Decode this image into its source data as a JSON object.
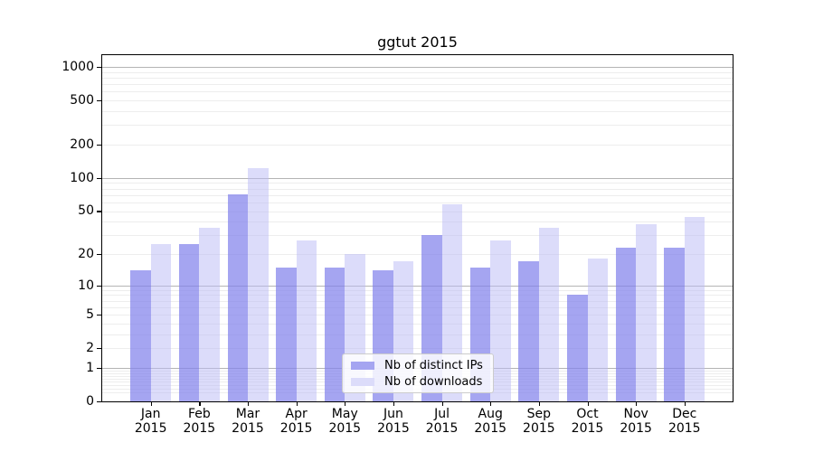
{
  "title": "ggtut 2015",
  "colors": {
    "ips_fill": "rgba(130,130,236,0.72)",
    "downloads_fill": "rgba(186,186,246,0.5)",
    "ips_solid": "#a5a5f1",
    "downloads_solid": "#dcdcfa",
    "major_grid": "#b4b4b4",
    "minor_grid": "#ededed",
    "axis": "#000000"
  },
  "legend": {
    "items": [
      {
        "label": "Nb of distinct IPs",
        "series": "ips"
      },
      {
        "label": "Nb of downloads",
        "series": "downloads"
      }
    ]
  },
  "x_axis": {
    "months": [
      "Jan",
      "Feb",
      "Mar",
      "Apr",
      "May",
      "Jun",
      "Jul",
      "Aug",
      "Sep",
      "Oct",
      "Nov",
      "Dec"
    ],
    "year": "2015"
  },
  "y_axis": {
    "tick_labels": [
      "1000",
      "500",
      "200",
      "100",
      "50",
      "20",
      "10",
      "5",
      "2",
      "1",
      "0"
    ]
  },
  "chart_data": {
    "type": "bar",
    "title": "ggtut 2015",
    "categories": [
      "Jan 2015",
      "Feb 2015",
      "Mar 2015",
      "Apr 2015",
      "May 2015",
      "Jun 2015",
      "Jul 2015",
      "Aug 2015",
      "Sep 2015",
      "Oct 2015",
      "Nov 2015",
      "Dec 2015"
    ],
    "series": [
      {
        "name": "Nb of distinct IPs",
        "values": [
          14,
          25,
          71,
          15,
          15,
          14,
          30,
          15,
          17,
          8,
          23,
          23
        ]
      },
      {
        "name": "Nb of downloads",
        "values": [
          25,
          35,
          122,
          27,
          20,
          17,
          58,
          27,
          35,
          18,
          38,
          44
        ]
      }
    ],
    "xlabel": "",
    "ylabel": "",
    "yscale": "log1p",
    "yticks": [
      0,
      1,
      2,
      5,
      10,
      20,
      50,
      100,
      200,
      500,
      1000
    ],
    "ylim": [
      0,
      1276
    ],
    "grid": "horizontal",
    "legend_position": "lower center"
  }
}
